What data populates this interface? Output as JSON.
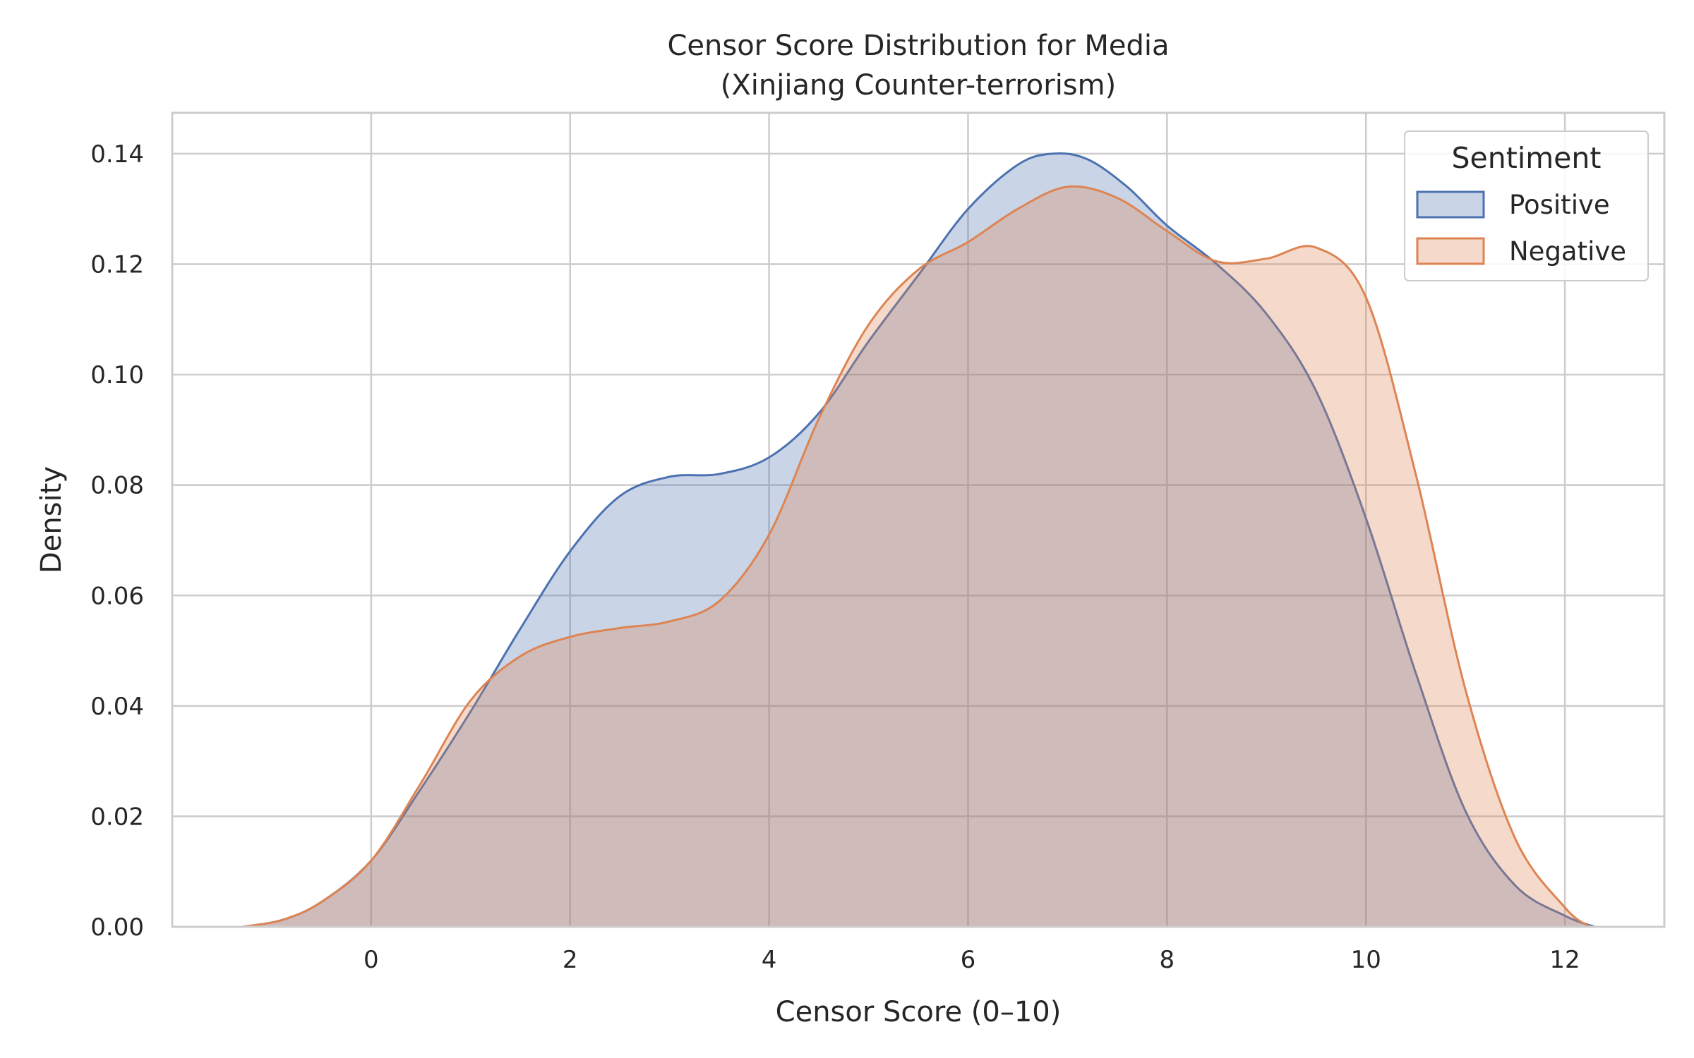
{
  "chart_data": {
    "type": "area",
    "title": "Censor Score Distribution for Media",
    "subtitle": "(Xinjiang Counter-terrorism)",
    "xlabel": "Censor Score (0–10)",
    "ylabel": "Density",
    "xlim": [
      -2.0,
      13.0
    ],
    "ylim": [
      0.0,
      0.14
    ],
    "x_ticks": [
      0,
      2,
      4,
      6,
      8,
      10,
      12
    ],
    "x_tick_labels": [
      "0",
      "2",
      "4",
      "6",
      "8",
      "10",
      "12"
    ],
    "y_ticks": [
      0.0,
      0.02,
      0.04,
      0.06,
      0.08,
      0.1,
      0.12,
      0.14
    ],
    "y_tick_labels": [
      "0.00",
      "0.02",
      "0.04",
      "0.06",
      "0.08",
      "0.10",
      "0.12",
      "0.14"
    ],
    "grid": true,
    "legend": {
      "title": "Sentiment",
      "position": "top-right"
    },
    "series": [
      {
        "name": "Positive",
        "line_color": "#4c72b0",
        "fill_color": "#4c72b0",
        "points": [
          [
            -1.3,
            0.0
          ],
          [
            -0.9,
            0.0012
          ],
          [
            -0.5,
            0.0045
          ],
          [
            0.0,
            0.012
          ],
          [
            0.5,
            0.025
          ],
          [
            1.0,
            0.039
          ],
          [
            1.5,
            0.054
          ],
          [
            2.0,
            0.068
          ],
          [
            2.5,
            0.078
          ],
          [
            3.0,
            0.0815
          ],
          [
            3.5,
            0.082
          ],
          [
            4.0,
            0.085
          ],
          [
            4.5,
            0.093
          ],
          [
            5.0,
            0.106
          ],
          [
            5.5,
            0.118
          ],
          [
            6.0,
            0.13
          ],
          [
            6.5,
            0.138
          ],
          [
            6.85,
            0.14
          ],
          [
            7.2,
            0.139
          ],
          [
            7.6,
            0.134
          ],
          [
            8.0,
            0.127
          ],
          [
            8.5,
            0.12
          ],
          [
            9.0,
            0.111
          ],
          [
            9.5,
            0.097
          ],
          [
            10.0,
            0.074
          ],
          [
            10.5,
            0.046
          ],
          [
            11.0,
            0.021
          ],
          [
            11.5,
            0.0075
          ],
          [
            12.0,
            0.002
          ],
          [
            12.3,
            0.0
          ]
        ]
      },
      {
        "name": "Negative",
        "line_color": "#dd8452",
        "fill_color": "#dd8452",
        "points": [
          [
            -1.3,
            0.0
          ],
          [
            -0.9,
            0.0012
          ],
          [
            -0.5,
            0.0045
          ],
          [
            0.0,
            0.012
          ],
          [
            0.5,
            0.026
          ],
          [
            1.0,
            0.041
          ],
          [
            1.5,
            0.049
          ],
          [
            2.0,
            0.0525
          ],
          [
            2.5,
            0.0541
          ],
          [
            3.0,
            0.0553
          ],
          [
            3.5,
            0.059
          ],
          [
            4.0,
            0.071
          ],
          [
            4.5,
            0.092
          ],
          [
            5.0,
            0.109
          ],
          [
            5.5,
            0.119
          ],
          [
            6.0,
            0.124
          ],
          [
            6.5,
            0.13
          ],
          [
            7.0,
            0.134
          ],
          [
            7.5,
            0.132
          ],
          [
            8.0,
            0.126
          ],
          [
            8.5,
            0.1205
          ],
          [
            9.0,
            0.121
          ],
          [
            9.5,
            0.123
          ],
          [
            10.0,
            0.114
          ],
          [
            10.5,
            0.082
          ],
          [
            11.0,
            0.043
          ],
          [
            11.5,
            0.016
          ],
          [
            12.0,
            0.0035
          ],
          [
            12.25,
            0.0
          ]
        ]
      }
    ]
  }
}
